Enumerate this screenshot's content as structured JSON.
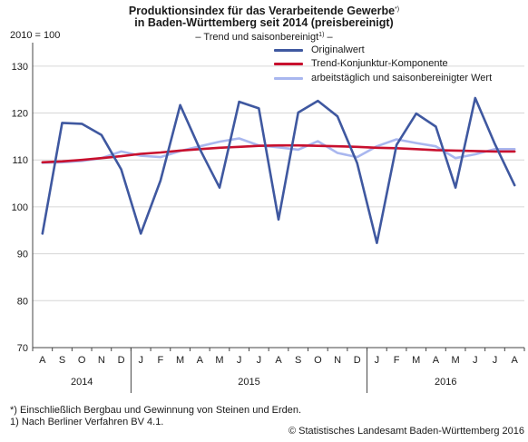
{
  "header": {
    "title_line1": "Produktionsindex für das Verarbeitende Gewerbe",
    "title_line1_mark": "*)",
    "title_line2": "in Baden-Württemberg seit 2014 (preisbereinigt)",
    "subtitle_prefix": "– Trend und saisonbereinigt",
    "subtitle_mark": "1)",
    "subtitle_suffix": " –"
  },
  "chart_data": {
    "type": "line",
    "ylabel": "2010 = 100",
    "ylim": [
      70,
      135
    ],
    "yticks": [
      70,
      80,
      90,
      100,
      110,
      120,
      130
    ],
    "grid": true,
    "legend_position": "top-right",
    "months": [
      "A",
      "S",
      "O",
      "N",
      "D",
      "J",
      "F",
      "M",
      "A",
      "M",
      "J",
      "J",
      "A",
      "S",
      "O",
      "N",
      "D",
      "J",
      "F",
      "M",
      "A",
      "M",
      "J",
      "J",
      "A"
    ],
    "years": [
      {
        "label": "2014",
        "start": 0,
        "end": 5
      },
      {
        "label": "2015",
        "start": 5,
        "end": 17
      },
      {
        "label": "2016",
        "start": 17,
        "end": 25
      }
    ],
    "series": [
      {
        "name": "Originalwert",
        "color": "#3f58a0",
        "width": 2.6,
        "values": [
          94.3,
          117.9,
          117.7,
          115.3,
          108.0,
          94.3,
          105.6,
          121.7,
          112.3,
          104.1,
          122.4,
          121.0,
          97.3,
          120.1,
          122.6,
          119.3,
          109.3,
          92.3,
          113.2,
          119.9,
          117.1,
          104.1,
          123.2,
          113.4,
          104.6
        ]
      },
      {
        "name": "Trend-Konjunktur-Komponente",
        "color": "#c8102e",
        "width": 2.6,
        "values": [
          109.5,
          109.7,
          110.0,
          110.4,
          110.8,
          111.3,
          111.6,
          112.0,
          112.3,
          112.6,
          112.8,
          113.0,
          113.1,
          113.1,
          113.0,
          112.9,
          112.8,
          112.6,
          112.5,
          112.3,
          112.1,
          112.0,
          111.9,
          111.8,
          111.8
        ]
      },
      {
        "name": "arbeitstäglich und saisonbereinigter Wert",
        "color": "#a9b7ef",
        "width": 2.6,
        "values": [
          109.4,
          109.5,
          109.8,
          110.4,
          111.8,
          110.9,
          110.6,
          111.9,
          112.9,
          113.9,
          114.6,
          113.1,
          112.7,
          112.2,
          114.0,
          111.5,
          110.6,
          112.9,
          114.4,
          113.6,
          112.9,
          110.4,
          111.2,
          112.3,
          112.3
        ]
      }
    ]
  },
  "footnotes": {
    "note1": "*) Einschließlich Bergbau und Gewinnung von Steinen und Erden.",
    "note2": "1) Nach Berliner Verfahren BV 4.1."
  },
  "source": "© Statistisches Landesamt Baden-Württemberg 2016"
}
